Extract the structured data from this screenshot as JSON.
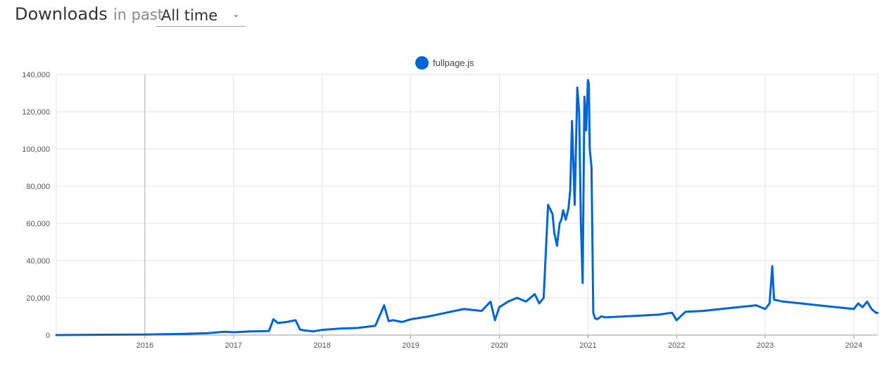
{
  "header": {
    "title": "Downloads",
    "subtitle": "in past"
  },
  "period": {
    "selected": "All time",
    "chevron_icon": "chevron-down-icon"
  },
  "colors": {
    "series": "#0066d6",
    "grid": "#e4e4e4",
    "axis": "#999999",
    "selector_underline": "#d9a521"
  },
  "chart_data": {
    "type": "line",
    "title": "",
    "xlabel": "",
    "ylabel": "",
    "legend_position": "top-center",
    "grid": true,
    "x_range": [
      2015.0,
      2024.27
    ],
    "ylim": [
      0,
      140000
    ],
    "y_ticks": [
      0,
      20000,
      40000,
      60000,
      80000,
      100000,
      120000,
      140000
    ],
    "y_tick_labels": [
      "0",
      "20,000",
      "40,000",
      "60,000",
      "80,000",
      "100,000",
      "120,000",
      "140,000"
    ],
    "x_ticks": [
      2016,
      2017,
      2018,
      2019,
      2020,
      2021,
      2022,
      2023,
      2024
    ],
    "x_tick_labels": [
      "2016",
      "2017",
      "2018",
      "2019",
      "2020",
      "2021",
      "2022",
      "2023",
      "2024"
    ],
    "series": [
      {
        "name": "fullpage.js",
        "x": [
          2015.0,
          2015.5,
          2016.0,
          2016.4,
          2016.7,
          2016.9,
          2017.0,
          2017.2,
          2017.4,
          2017.45,
          2017.5,
          2017.6,
          2017.7,
          2017.75,
          2017.8,
          2017.9,
          2018.0,
          2018.2,
          2018.4,
          2018.6,
          2018.7,
          2018.75,
          2018.8,
          2018.9,
          2019.0,
          2019.2,
          2019.4,
          2019.6,
          2019.8,
          2019.9,
          2019.95,
          2020.0,
          2020.1,
          2020.2,
          2020.3,
          2020.4,
          2020.45,
          2020.5,
          2020.55,
          2020.6,
          2020.62,
          2020.65,
          2020.68,
          2020.7,
          2020.72,
          2020.75,
          2020.78,
          2020.8,
          2020.82,
          2020.85,
          2020.88,
          2020.9,
          2020.92,
          2020.94,
          2020.96,
          2020.98,
          2021.0,
          2021.01,
          2021.02,
          2021.04,
          2021.06,
          2021.08,
          2021.1,
          2021.12,
          2021.15,
          2021.2,
          2021.4,
          2021.6,
          2021.8,
          2021.95,
          2022.0,
          2022.1,
          2022.3,
          2022.5,
          2022.7,
          2022.9,
          2023.0,
          2023.05,
          2023.08,
          2023.1,
          2023.2,
          2023.4,
          2023.6,
          2023.8,
          2024.0,
          2024.05,
          2024.1,
          2024.15,
          2024.2,
          2024.25,
          2024.27
        ],
        "y": [
          0,
          200,
          300,
          600,
          1000,
          1800,
          1500,
          2000,
          2200,
          8500,
          6500,
          7000,
          8000,
          3000,
          2500,
          2000,
          2800,
          3500,
          3800,
          5000,
          16000,
          7500,
          8000,
          7000,
          8500,
          10000,
          12000,
          14000,
          13000,
          18000,
          8000,
          15000,
          18000,
          20000,
          18000,
          22000,
          17000,
          20000,
          70000,
          65000,
          55000,
          48000,
          60000,
          62000,
          67000,
          62000,
          68000,
          78000,
          115000,
          70000,
          133000,
          120000,
          60000,
          28000,
          128000,
          110000,
          137000,
          135000,
          100000,
          90000,
          12000,
          9000,
          8500,
          9000,
          10000,
          9500,
          10000,
          10500,
          11000,
          12000,
          8000,
          12500,
          13000,
          14000,
          15000,
          16000,
          14000,
          17000,
          37000,
          19000,
          18000,
          17000,
          16000,
          15000,
          14000,
          17000,
          15000,
          18000,
          14000,
          12000,
          12000
        ]
      }
    ]
  }
}
